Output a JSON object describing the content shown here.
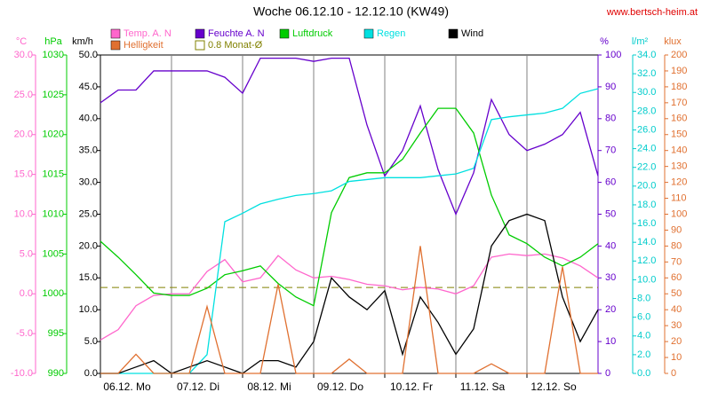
{
  "chart_data": {
    "type": "line",
    "title": "Woche 06.12.10 - 12.12.10 (KW49)",
    "source": "www.bertsch-heim.at",
    "grid": "x",
    "xlim": [
      0,
      7
    ],
    "xticks": [
      {
        "value": 0,
        "label": "06.12. Mo"
      },
      {
        "value": 1,
        "label": "07.12. Di"
      },
      {
        "value": 2,
        "label": "08.12. Mi"
      },
      {
        "value": 3,
        "label": "09.12. Do"
      },
      {
        "value": 4,
        "label": "10.12. Fr"
      },
      {
        "value": 5,
        "label": "11.12. Sa"
      },
      {
        "value": 6,
        "label": "12.12. So"
      }
    ],
    "x": [
      0,
      0.25,
      0.5,
      0.75,
      1,
      1.25,
      1.5,
      1.75,
      2,
      2.25,
      2.5,
      2.75,
      3,
      3.25,
      3.5,
      3.75,
      4,
      4.25,
      4.5,
      4.75,
      5,
      5.25,
      5.5,
      5.75,
      6,
      6.25,
      6.5,
      6.75,
      7
    ],
    "yaxes": [
      {
        "unit": "°C",
        "color": "#ff66cc",
        "side": "left",
        "ylim": [
          -10,
          30
        ],
        "yticks": [
          {
            "value": -10,
            "label": "-10.0"
          },
          {
            "value": -5,
            "label": "-5.0"
          },
          {
            "value": 0,
            "label": "0.0"
          },
          {
            "value": 5,
            "label": "5.0"
          },
          {
            "value": 10,
            "label": "10.0"
          },
          {
            "value": 15,
            "label": "15.0"
          },
          {
            "value": 20,
            "label": "20.0"
          },
          {
            "value": 25,
            "label": "25.0"
          },
          {
            "value": 30,
            "label": "30.0"
          }
        ]
      },
      {
        "unit": "hPa",
        "color": "#00cc00",
        "side": "left",
        "ylim": [
          990,
          1030
        ],
        "yticks": [
          990,
          995,
          1000,
          1005,
          1010,
          1015,
          1020,
          1025,
          1030
        ]
      },
      {
        "unit": "km/h",
        "color": "#000000",
        "side": "left",
        "ylim": [
          0,
          50
        ],
        "yticks": [
          {
            "value": 0,
            "label": "0.0"
          },
          {
            "value": 5,
            "label": "5.0"
          },
          {
            "value": 10,
            "label": "10.0"
          },
          {
            "value": 15,
            "label": "15.0"
          },
          {
            "value": 20,
            "label": "20.0"
          },
          {
            "value": 25,
            "label": "25.0"
          },
          {
            "value": 30,
            "label": "30.0"
          },
          {
            "value": 35,
            "label": "35.0"
          },
          {
            "value": 40,
            "label": "40.0"
          },
          {
            "value": 45,
            "label": "45.0"
          },
          {
            "value": 50,
            "label": "50.0"
          }
        ]
      },
      {
        "unit": "%",
        "color": "#6600cc",
        "side": "right",
        "ylim": [
          0,
          100
        ],
        "yticks": [
          0,
          10,
          20,
          30,
          40,
          50,
          60,
          70,
          80,
          90,
          100
        ]
      },
      {
        "unit": "l/m²",
        "color": "#00cccc",
        "side": "right",
        "ylim": [
          0,
          34
        ],
        "yticks": [
          {
            "value": 0,
            "label": "0.0"
          },
          {
            "value": 2,
            "label": "2.0"
          },
          {
            "value": 4,
            "label": "4.0"
          },
          {
            "value": 6,
            "label": "6.0"
          },
          {
            "value": 8,
            "label": "8.0"
          },
          {
            "value": 10,
            "label": "10.0"
          },
          {
            "value": 12,
            "label": "12.0"
          },
          {
            "value": 14,
            "label": "14.0"
          },
          {
            "value": 16,
            "label": "16.0"
          },
          {
            "value": 18,
            "label": "18.0"
          },
          {
            "value": 20,
            "label": "20.0"
          },
          {
            "value": 22,
            "label": "22.0"
          },
          {
            "value": 24,
            "label": "24.0"
          },
          {
            "value": 26,
            "label": "26.0"
          },
          {
            "value": 28,
            "label": "28.0"
          },
          {
            "value": 30,
            "label": "30.0"
          },
          {
            "value": 32,
            "label": "32.0"
          },
          {
            "value": 34,
            "label": "34.0"
          }
        ]
      },
      {
        "unit": "klux",
        "color": "#e07030",
        "side": "right",
        "ylim": [
          0,
          200
        ],
        "yticks": [
          0,
          10,
          20,
          30,
          40,
          50,
          60,
          70,
          80,
          90,
          100,
          110,
          120,
          130,
          140,
          150,
          160,
          170,
          180,
          190,
          200
        ]
      }
    ],
    "series": [
      {
        "name": "Temp. A. N",
        "color": "#ff66cc",
        "axis": 0,
        "values": [
          -5.8,
          -4.5,
          -1.5,
          -0.2,
          0.0,
          0.0,
          2.8,
          4.3,
          1.5,
          2.0,
          4.8,
          3.0,
          2.0,
          2.2,
          1.8,
          1.2,
          1.0,
          0.5,
          0.8,
          0.6,
          0.0,
          1.0,
          4.6,
          5.0,
          4.8,
          5.0,
          4.5,
          3.5,
          2.0
        ]
      },
      {
        "name": "Feuchte A. N",
        "color": "#6600cc",
        "axis": 3,
        "values": [
          85,
          89,
          89,
          95,
          95,
          95,
          95,
          93,
          88,
          99,
          99,
          99,
          98,
          99,
          99,
          78,
          62,
          70,
          84,
          64,
          50,
          63,
          86,
          75,
          70,
          72,
          75,
          82,
          62
        ]
      },
      {
        "name": "Luftdruck",
        "color": "#00cc00",
        "axis": 1,
        "values": [
          1006.6,
          1004.6,
          1002.4,
          1000.1,
          999.8,
          999.8,
          1000.7,
          1002.4,
          1002.9,
          1003.5,
          1001.3,
          999.6,
          998.5,
          1010.2,
          1014.6,
          1015.2,
          1015.2,
          1016.9,
          1020.2,
          1023.3,
          1023.3,
          1020.2,
          1012.4,
          1007.4,
          1006.3,
          1004.6,
          1003.5,
          1004.6,
          1006.3
        ]
      },
      {
        "name": "Regen",
        "color": "#00e0e0",
        "axis": 4,
        "values": [
          0,
          0,
          0,
          0,
          0,
          0,
          2,
          16.2,
          17.1,
          18.1,
          18.6,
          19.0,
          19.2,
          19.5,
          20.5,
          20.7,
          20.9,
          20.9,
          20.9,
          21.1,
          21.3,
          21.9,
          27.1,
          27.4,
          27.6,
          27.8,
          28.3,
          29.9,
          30.4
        ]
      },
      {
        "name": "Wind",
        "color": "#000000",
        "axis": 2,
        "values": [
          0,
          0,
          1,
          2,
          0,
          1,
          2,
          1,
          0,
          2,
          2,
          1,
          5,
          15,
          12,
          10,
          13,
          3,
          12,
          8,
          3,
          7,
          20,
          24,
          25,
          24,
          12,
          5,
          10
        ]
      },
      {
        "name": "Helligkeit",
        "color": "#e07030",
        "axis": 5,
        "values": [
          0,
          0,
          12,
          0,
          0,
          0,
          42,
          0,
          0,
          0,
          56,
          0,
          0,
          0,
          9,
          0,
          0,
          0,
          80,
          0,
          0,
          0,
          6,
          0,
          0,
          0,
          67,
          0,
          0
        ]
      }
    ],
    "reference": {
      "label": "0.8 Monat-Ø",
      "value": 0.8,
      "axis": 0,
      "color": "#808000"
    }
  }
}
